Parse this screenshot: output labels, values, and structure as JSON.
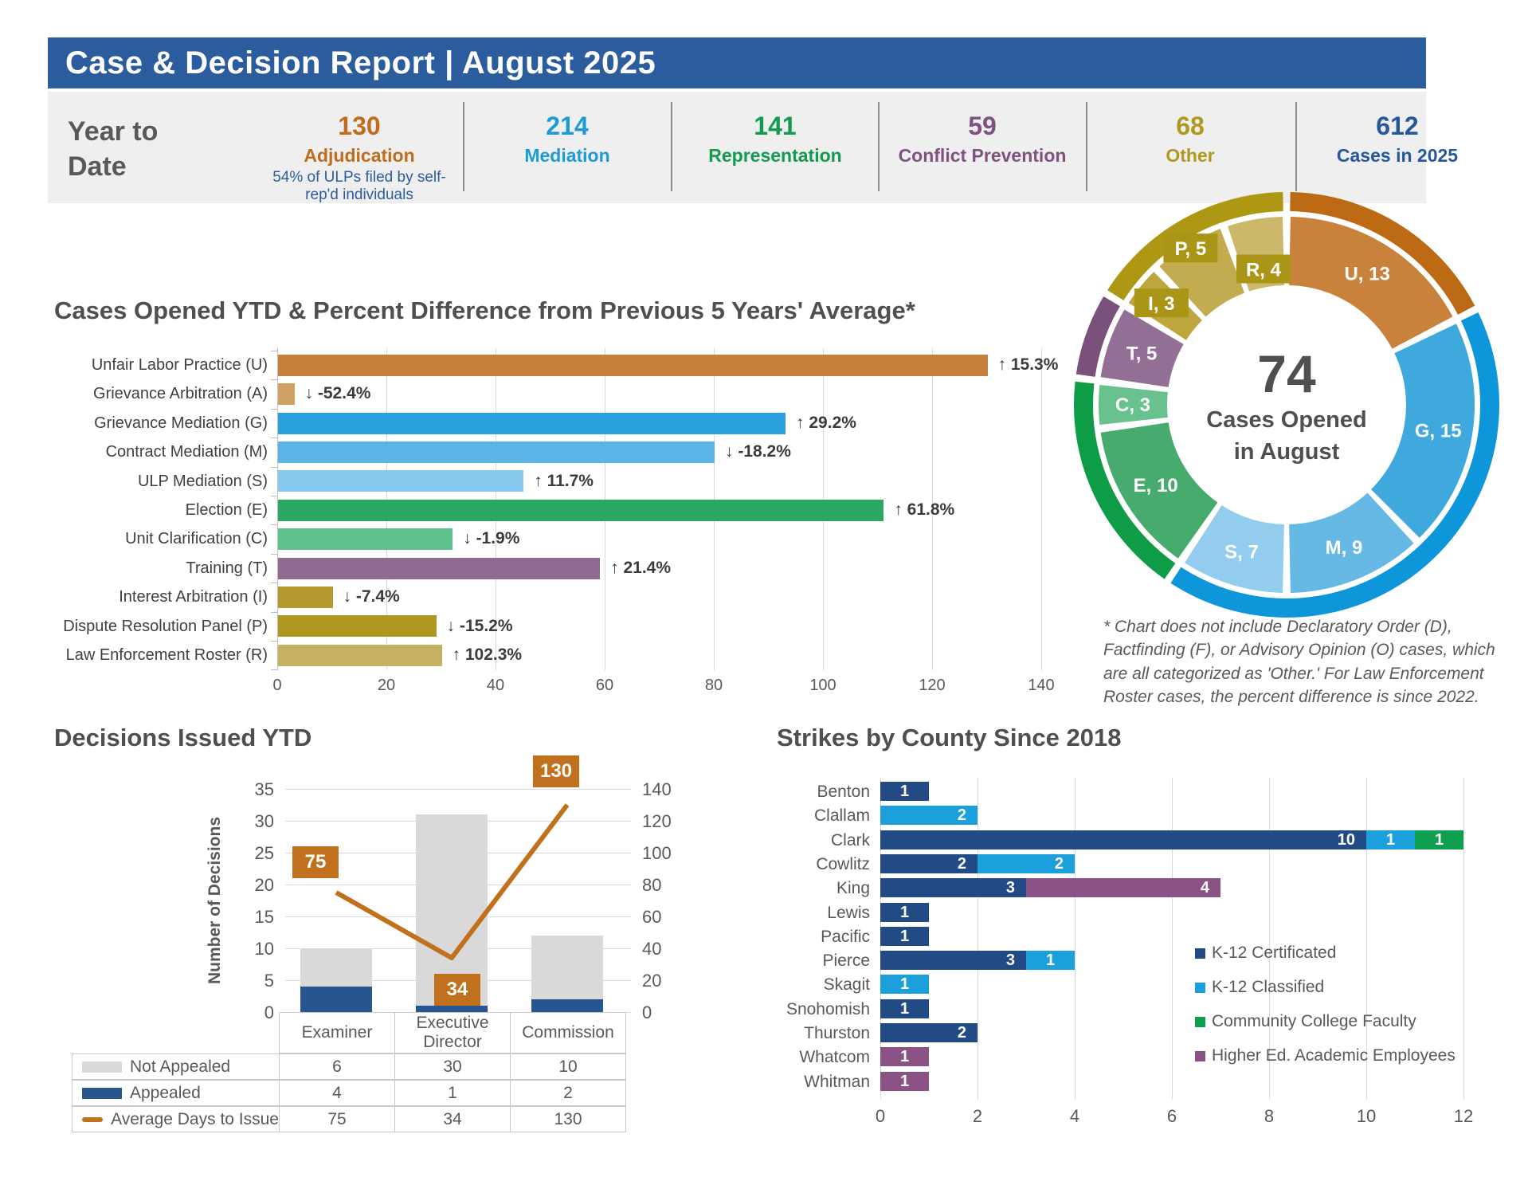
{
  "header": {
    "title": "Case & Decision Report | August 2025"
  },
  "ytd": {
    "label": "Year to Date",
    "stats": [
      {
        "value": "130",
        "label": "Adjudication",
        "color": "#c06c1c",
        "note": "54% of ULPs filed by self-rep'd individuals"
      },
      {
        "value": "214",
        "label": "Mediation",
        "color": "#1e9bd7"
      },
      {
        "value": "141",
        "label": "Representation",
        "color": "#129a4f"
      },
      {
        "value": "59",
        "label": "Conflict Prevention",
        "color": "#7e5181"
      },
      {
        "value": "68",
        "label": "Other",
        "color": "#b0981d"
      },
      {
        "value": "612",
        "label": "Cases in 2025",
        "color": "#26579b"
      }
    ]
  },
  "chart_data": [
    {
      "id": "cases-opened-ytd",
      "type": "bar",
      "orientation": "horizontal",
      "title": "Cases Opened YTD & Percent Difference from Previous 5 Years' Average*",
      "xlim": [
        0,
        140
      ],
      "xticks": [
        0,
        20,
        40,
        60,
        80,
        100,
        120,
        140
      ],
      "grid": true,
      "bars": [
        {
          "label": "Unfair Labor Practice (U)",
          "code": "U",
          "value": 130,
          "pct": "↑ 15.3%",
          "color": "#c5813a"
        },
        {
          "label": "Grievance Arbitration (A)",
          "code": "A",
          "value": 3,
          "pct": "↓ -52.4%",
          "color": "#cfa263"
        },
        {
          "label": "Grievance Mediation (G)",
          "code": "G",
          "value": 93,
          "pct": "↑ 29.2%",
          "color": "#2ba2dd"
        },
        {
          "label": "Contract Mediation (M)",
          "code": "M",
          "value": 80,
          "pct": "↓ -18.2%",
          "color": "#5ab4e5"
        },
        {
          "label": "ULP Mediation (S)",
          "code": "S",
          "value": 45,
          "pct": "↑ 11.7%",
          "color": "#86c8ee"
        },
        {
          "label": "Election (E)",
          "code": "E",
          "value": 111,
          "pct": "↑ 61.8%",
          "color": "#2aa763"
        },
        {
          "label": "Unit Clarification (C)",
          "code": "C",
          "value": 32,
          "pct": "↓ -1.9%",
          "color": "#5ec08a"
        },
        {
          "label": "Training (T)",
          "code": "T",
          "value": 59,
          "pct": "↑ 21.4%",
          "color": "#8f6b92"
        },
        {
          "label": "Interest Arbitration (I)",
          "code": "I",
          "value": 10,
          "pct": "↓ -7.4%",
          "color": "#b59b2d"
        },
        {
          "label": "Dispute Resolution Panel (P)",
          "code": "P",
          "value": 29,
          "pct": "↓ -15.2%",
          "color": "#af981f"
        },
        {
          "label": "Law Enforcement Roster (R)",
          "code": "R",
          "value": 30,
          "pct": "↑ 102.3%",
          "color": "#c6b162"
        }
      ]
    },
    {
      "id": "cases-opened-august",
      "type": "pie",
      "center": {
        "big": "74",
        "line1": "Cases Opened",
        "line2": "in August"
      },
      "slices": [
        {
          "code": "U",
          "value": 13,
          "color": "#c8823c",
          "boxed": false
        },
        {
          "code": "G",
          "value": 15,
          "color": "#3fa8dc",
          "boxed": false
        },
        {
          "code": "M",
          "value": 9,
          "color": "#66b9e5",
          "boxed": false
        },
        {
          "code": "S",
          "value": 7,
          "color": "#92cdee",
          "boxed": false
        },
        {
          "code": "E",
          "value": 10,
          "color": "#46ab6d",
          "boxed": false
        },
        {
          "code": "C",
          "value": 3,
          "color": "#69c18e",
          "boxed": false
        },
        {
          "code": "T",
          "value": 5,
          "color": "#926f95",
          "boxed": false
        },
        {
          "code": "I",
          "value": 3,
          "color": "#bfa53e",
          "boxed": true,
          "label_r": 202
        },
        {
          "code": "P",
          "value": 5,
          "color": "#c3ab50",
          "boxed": true,
          "label_r": 230
        },
        {
          "code": "R",
          "value": 4,
          "color": "#ccb86a",
          "boxed": true,
          "label_r": 172
        }
      ],
      "groups": [
        {
          "value": 13,
          "color": "#bd6a14"
        },
        {
          "value": 31,
          "color": "#0d97da"
        },
        {
          "value": 13,
          "color": "#0e9c47"
        },
        {
          "value": 5,
          "color": "#7a517b"
        },
        {
          "value": 12,
          "color": "#ad9713"
        }
      ],
      "box_color": "#ab9516",
      "footnote": "* Chart does not include Declaratory Order (D), Factfinding (F), or Advisory Opinion (O) cases, which are all categorized as 'Other.' For Law Enforcement Roster cases, the percent difference is since 2022."
    },
    {
      "id": "decisions-issued-ytd",
      "type": "bar+line",
      "title": "Decisions Issued YTD",
      "categories": [
        "Examiner",
        "Executive Director",
        "Commission"
      ],
      "y_left": {
        "label": "Number of Decisions",
        "max": 35,
        "step": 5
      },
      "y_right": {
        "max": 140,
        "step": 20
      },
      "series": [
        {
          "name": "Not Appealed",
          "type": "bar",
          "swatch": "rect",
          "values": [
            6,
            30,
            10
          ],
          "color": "#d9d9d9"
        },
        {
          "name": "Appealed",
          "type": "bar",
          "swatch": "rect",
          "values": [
            4,
            1,
            2
          ],
          "color": "#28558f"
        },
        {
          "name": "Average Days to Issue",
          "type": "line",
          "swatch": "line",
          "values": [
            75,
            34,
            130
          ],
          "color": "#c1711d"
        }
      ]
    },
    {
      "id": "strikes-by-county",
      "type": "stacked-bar",
      "orientation": "horizontal",
      "title": "Strikes by County Since 2018",
      "categories": [
        "Benton",
        "Clallam",
        "Clark",
        "Cowlitz",
        "King",
        "Lewis",
        "Pacific",
        "Pierce",
        "Skagit",
        "Snohomish",
        "Thurston",
        "Whatcom",
        "Whitman"
      ],
      "xlim": [
        0,
        12
      ],
      "xticks": [
        0,
        2,
        4,
        6,
        8,
        10,
        12
      ],
      "legend_position": "inside-right",
      "series": [
        {
          "name": "K-12 Certificated",
          "color": "#224a85",
          "values": [
            1,
            0,
            10,
            2,
            3,
            1,
            1,
            3,
            0,
            1,
            2,
            0,
            0
          ]
        },
        {
          "name": "K-12 Classified",
          "color": "#1ba0dc",
          "values": [
            0,
            2,
            1,
            2,
            0,
            0,
            0,
            1,
            1,
            0,
            0,
            0,
            0
          ]
        },
        {
          "name": "Community College Faculty",
          "color": "#0ea04e",
          "values": [
            0,
            0,
            1,
            0,
            0,
            0,
            0,
            0,
            0,
            0,
            0,
            0,
            0
          ]
        },
        {
          "name": "Higher Ed. Academic Employees",
          "color": "#8a5285",
          "values": [
            0,
            0,
            0,
            0,
            4,
            0,
            0,
            0,
            0,
            0,
            0,
            1,
            1
          ]
        }
      ]
    }
  ]
}
